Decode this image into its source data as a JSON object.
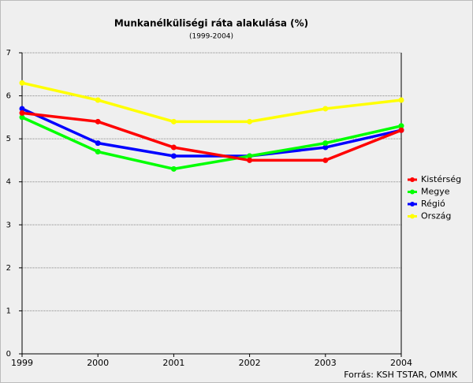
{
  "chart_data": {
    "type": "line",
    "title": "Munkanélküliségi ráta alakulása (%)",
    "subtitle": "(1999-2004)",
    "source": "Forrás: KSH TSTAR, OMMK",
    "x": [
      1999,
      2000,
      2001,
      2002,
      2003,
      2004
    ],
    "xlim": [
      1999,
      2004
    ],
    "xticks": [
      1999,
      2000,
      2001,
      2002,
      2003,
      2004
    ],
    "ylim": [
      0,
      7
    ],
    "yticks": [
      0,
      1,
      2,
      3,
      4,
      5,
      6,
      7
    ],
    "grid": true,
    "legend": "right",
    "series": [
      {
        "name": "Kistérség",
        "color": "#ff0000",
        "values": [
          5.6,
          5.4,
          4.8,
          4.5,
          4.5,
          5.2
        ]
      },
      {
        "name": "Megye",
        "color": "#00ff00",
        "values": [
          5.5,
          4.7,
          4.3,
          4.6,
          4.9,
          5.3
        ]
      },
      {
        "name": "Régió",
        "color": "#0000ff",
        "values": [
          5.7,
          4.9,
          4.6,
          4.6,
          4.8,
          5.2
        ]
      },
      {
        "name": "Ország",
        "color": "#ffff00",
        "values": [
          6.3,
          5.9,
          5.4,
          5.4,
          5.7,
          5.9
        ]
      }
    ]
  }
}
